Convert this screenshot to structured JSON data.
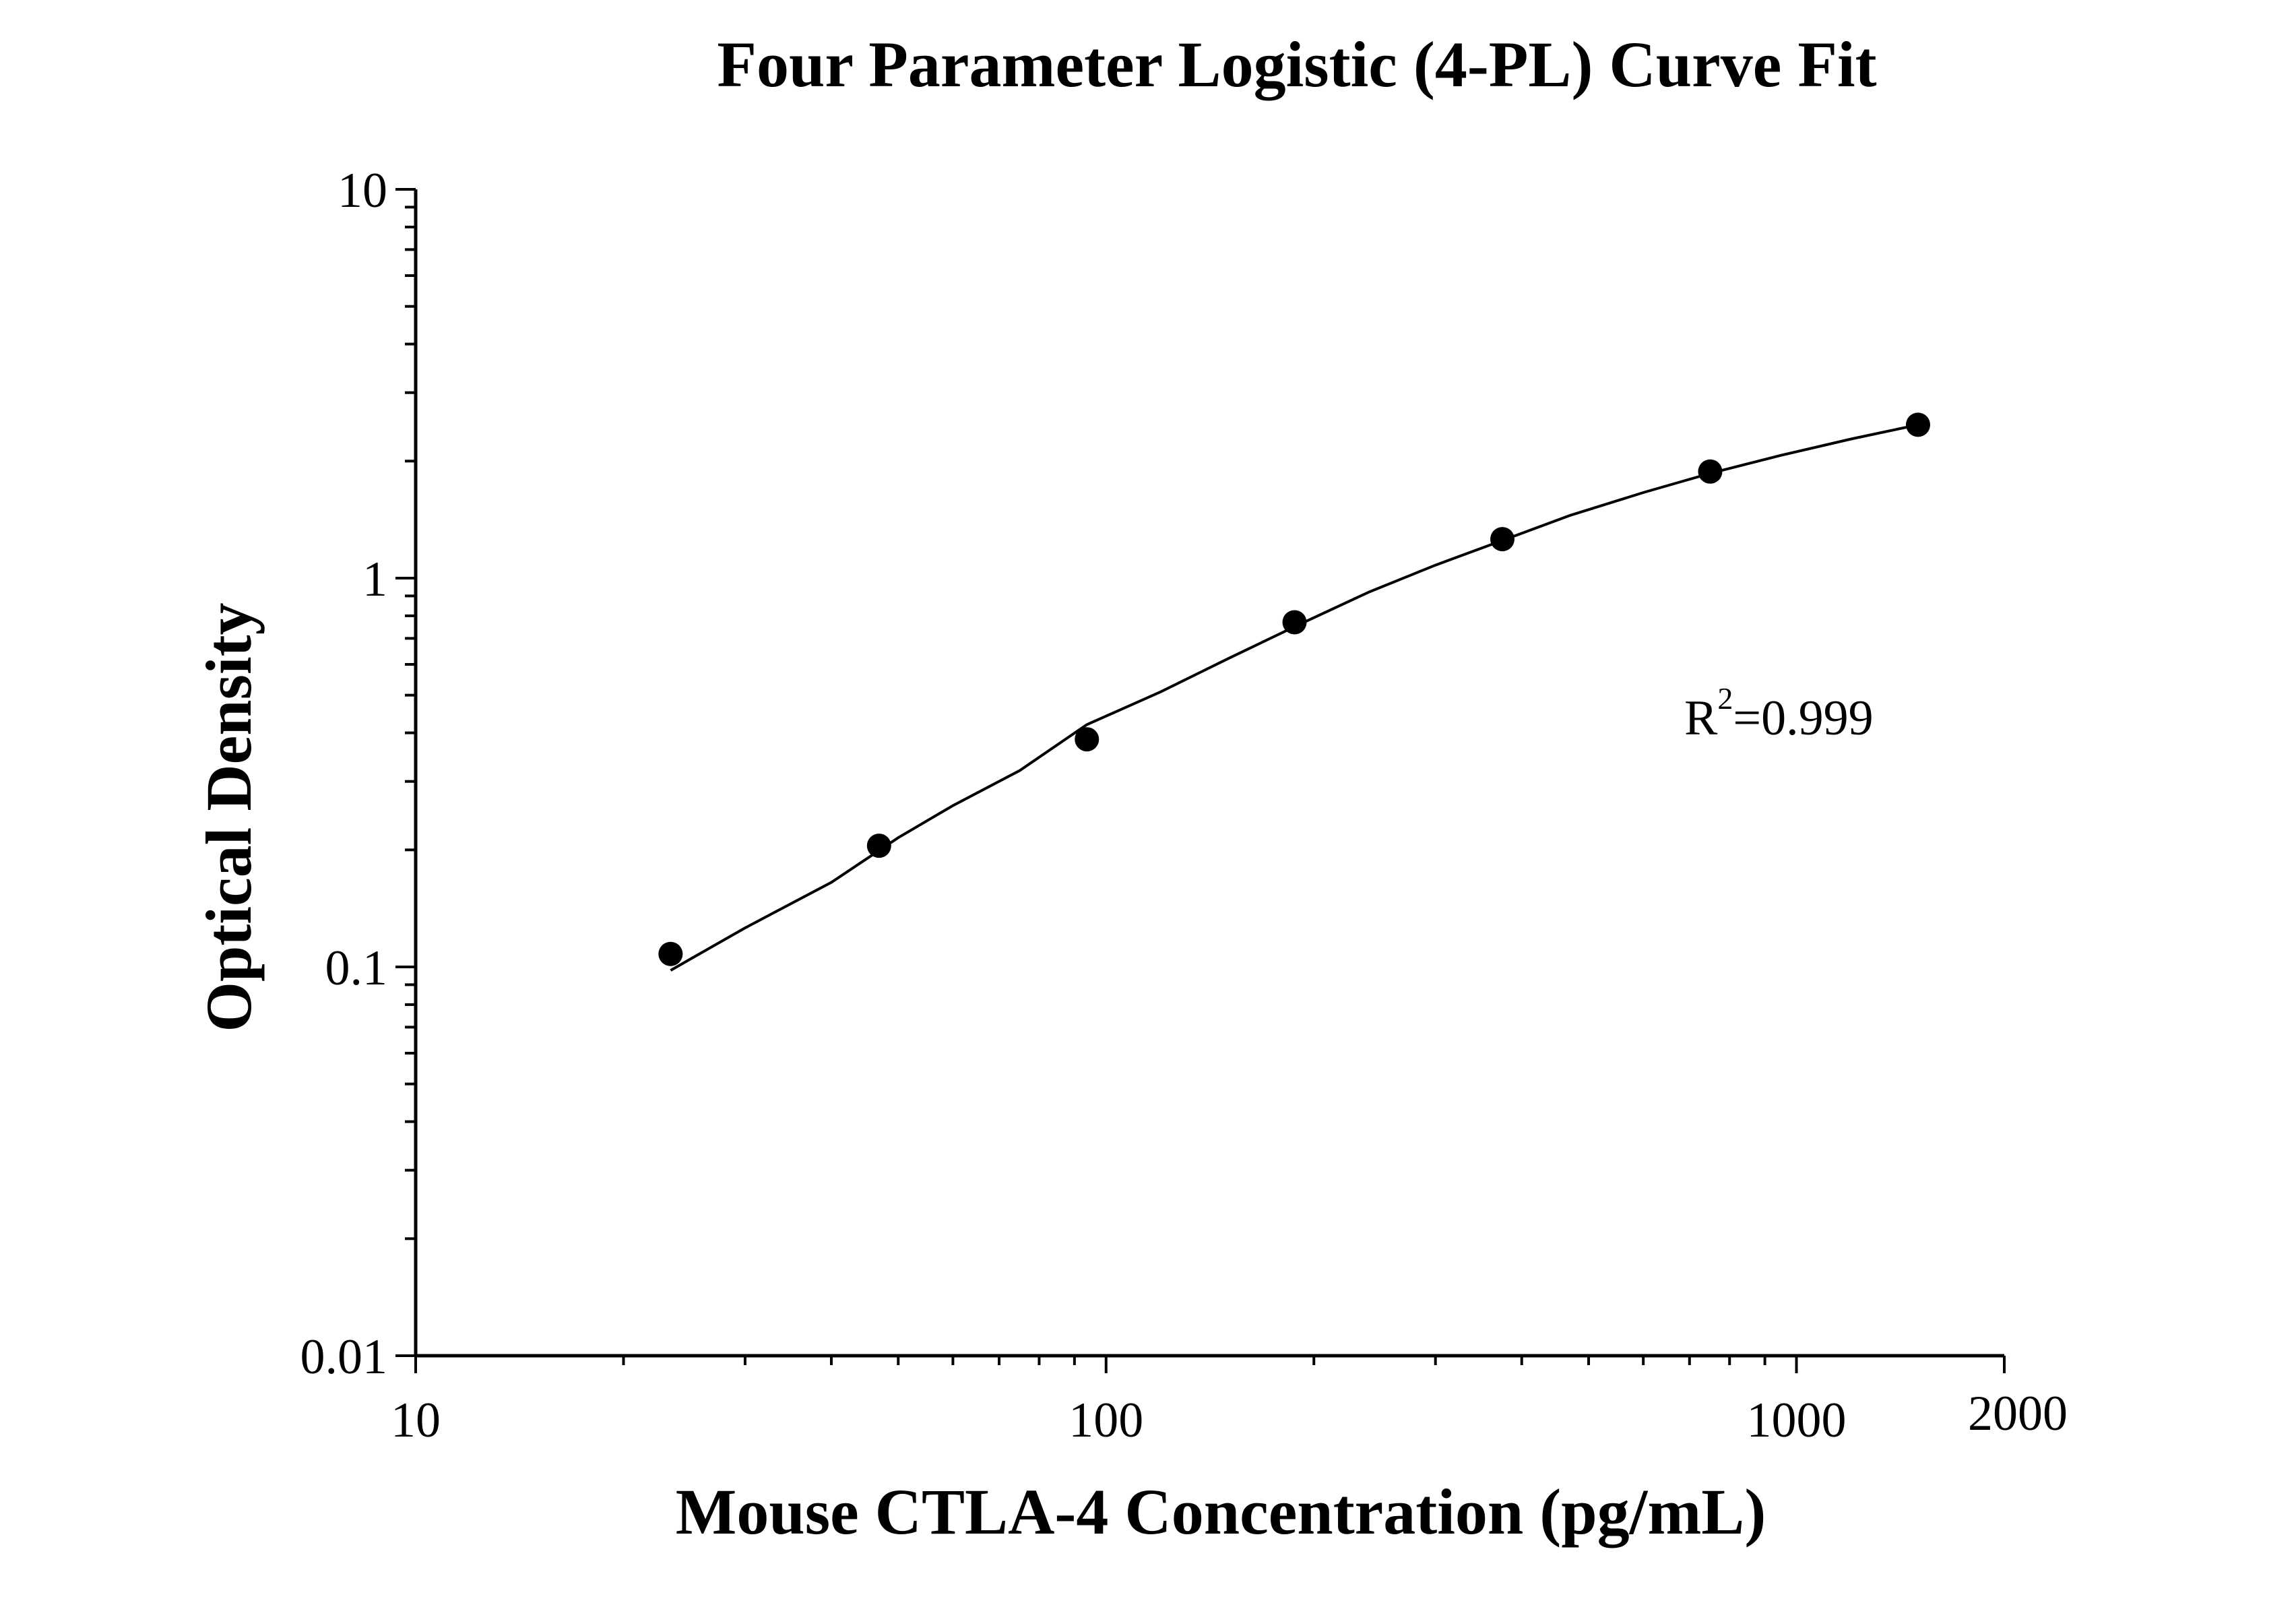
{
  "chart_data": {
    "type": "scatter",
    "title": "Four Parameter Logistic (4-PL) Curve Fit",
    "xlabel": "Mouse CTLA-4 Concentration (pg/mL)",
    "ylabel": "Optical Density",
    "x_scale": "log",
    "y_scale": "log",
    "xlim": [
      10,
      2000
    ],
    "ylim": [
      0.01,
      10
    ],
    "x_ticks": [
      10,
      100,
      1000,
      2000
    ],
    "x_tick_labels": [
      "10",
      "100",
      "1000",
      "2000"
    ],
    "y_ticks": [
      0.01,
      0.1,
      1,
      10
    ],
    "y_tick_labels": [
      "0.01",
      "0.1",
      "1",
      "10"
    ],
    "grid": false,
    "points": {
      "x": [
        23.4,
        46.9,
        93.8,
        187.5,
        375,
        750,
        1500
      ],
      "y": [
        0.108,
        0.205,
        0.385,
        0.77,
        1.26,
        1.88,
        2.48
      ]
    },
    "fit_curve": {
      "model": "4-PL",
      "x": [
        23.4,
        30,
        40,
        50,
        60,
        75,
        93.8,
        120,
        150,
        187.5,
        240,
        300,
        375,
        470,
        600,
        750,
        950,
        1200,
        1500
      ],
      "y": [
        0.098,
        0.126,
        0.165,
        0.215,
        0.26,
        0.32,
        0.42,
        0.51,
        0.62,
        0.75,
        0.92,
        1.08,
        1.25,
        1.45,
        1.66,
        1.86,
        2.07,
        2.28,
        2.48
      ]
    },
    "annotation": {
      "base": "R",
      "sup": "2",
      "rest": "=0.999"
    }
  }
}
